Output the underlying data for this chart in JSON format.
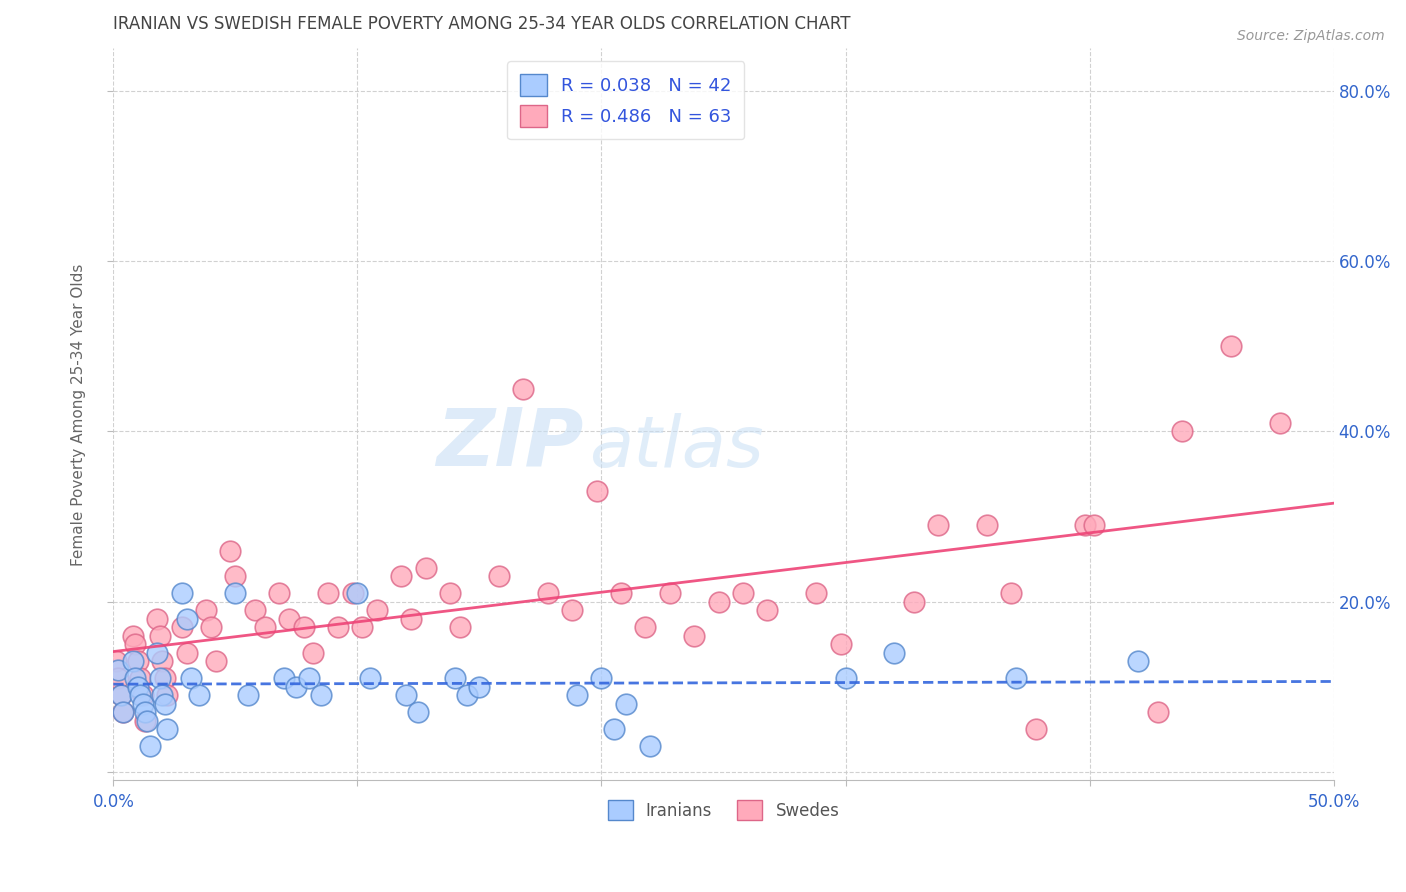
{
  "title": "IRANIAN VS SWEDISH FEMALE POVERTY AMONG 25-34 YEAR OLDS CORRELATION CHART",
  "source": "Source: ZipAtlas.com",
  "ylabel": "Female Poverty Among 25-34 Year Olds",
  "xlim": [
    0.0,
    0.5
  ],
  "ylim": [
    -0.01,
    0.85
  ],
  "xticks": [
    0.0,
    0.1,
    0.2,
    0.3,
    0.4,
    0.5
  ],
  "yticks": [
    0.0,
    0.2,
    0.4,
    0.6,
    0.8
  ],
  "iranian_color": "#aaccff",
  "swedish_color": "#ffaabb",
  "iranian_line_color": "#3366dd",
  "swedish_line_color": "#ee4477",
  "bg_color": "#ffffff",
  "grid_color": "#cccccc",
  "iranians_R": 0.038,
  "iranians_N": 42,
  "swedes_R": 0.486,
  "swedes_N": 63,
  "iranians_x": [
    0.002,
    0.003,
    0.004,
    0.008,
    0.009,
    0.01,
    0.011,
    0.012,
    0.013,
    0.014,
    0.015,
    0.018,
    0.019,
    0.02,
    0.021,
    0.022,
    0.028,
    0.03,
    0.032,
    0.035,
    0.05,
    0.055,
    0.07,
    0.075,
    0.08,
    0.085,
    0.1,
    0.105,
    0.12,
    0.125,
    0.14,
    0.145,
    0.15,
    0.19,
    0.2,
    0.205,
    0.21,
    0.22,
    0.3,
    0.32,
    0.37,
    0.42
  ],
  "iranians_y": [
    0.12,
    0.09,
    0.07,
    0.13,
    0.11,
    0.1,
    0.09,
    0.08,
    0.07,
    0.06,
    0.03,
    0.14,
    0.11,
    0.09,
    0.08,
    0.05,
    0.21,
    0.18,
    0.11,
    0.09,
    0.21,
    0.09,
    0.11,
    0.1,
    0.11,
    0.09,
    0.21,
    0.11,
    0.09,
    0.07,
    0.11,
    0.09,
    0.1,
    0.09,
    0.11,
    0.05,
    0.08,
    0.03,
    0.11,
    0.14,
    0.11,
    0.13
  ],
  "swedes_x": [
    0.001,
    0.002,
    0.003,
    0.004,
    0.008,
    0.009,
    0.01,
    0.011,
    0.012,
    0.013,
    0.018,
    0.019,
    0.02,
    0.021,
    0.022,
    0.028,
    0.03,
    0.038,
    0.04,
    0.042,
    0.048,
    0.05,
    0.058,
    0.062,
    0.068,
    0.072,
    0.078,
    0.082,
    0.088,
    0.092,
    0.098,
    0.102,
    0.108,
    0.118,
    0.122,
    0.128,
    0.138,
    0.142,
    0.158,
    0.168,
    0.178,
    0.188,
    0.198,
    0.208,
    0.218,
    0.228,
    0.238,
    0.248,
    0.258,
    0.268,
    0.288,
    0.298,
    0.328,
    0.338,
    0.358,
    0.368,
    0.378,
    0.398,
    0.402,
    0.428,
    0.438,
    0.458,
    0.478
  ],
  "swedes_y": [
    0.13,
    0.11,
    0.09,
    0.07,
    0.16,
    0.15,
    0.13,
    0.11,
    0.09,
    0.06,
    0.18,
    0.16,
    0.13,
    0.11,
    0.09,
    0.17,
    0.14,
    0.19,
    0.17,
    0.13,
    0.26,
    0.23,
    0.19,
    0.17,
    0.21,
    0.18,
    0.17,
    0.14,
    0.21,
    0.17,
    0.21,
    0.17,
    0.19,
    0.23,
    0.18,
    0.24,
    0.21,
    0.17,
    0.23,
    0.45,
    0.21,
    0.19,
    0.33,
    0.21,
    0.17,
    0.21,
    0.16,
    0.2,
    0.21,
    0.19,
    0.21,
    0.15,
    0.2,
    0.29,
    0.29,
    0.21,
    0.05,
    0.29,
    0.29,
    0.07,
    0.4,
    0.5,
    0.41
  ]
}
